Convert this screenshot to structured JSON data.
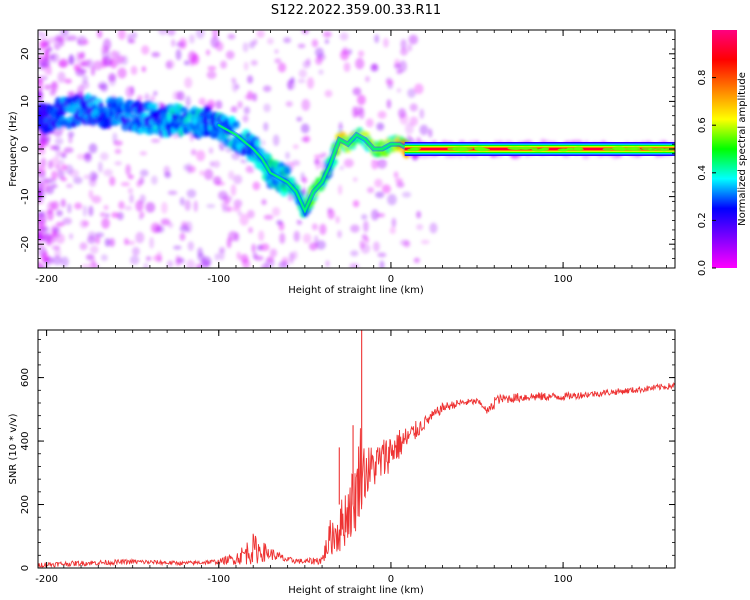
{
  "figure": {
    "title": "S122.2022.359.00.33.R11"
  },
  "colorbar": {
    "label": "Normalized spectral amplitude",
    "ticks": [
      0.0,
      0.2,
      0.4,
      0.6,
      0.8
    ],
    "tick_labels": [
      "0.0",
      "0.2",
      "0.4",
      "0.6",
      "0.8"
    ],
    "range": [
      0,
      1
    ],
    "colormap": [
      "#ff00ff",
      "#8000ff",
      "#0000ff",
      "#00ffff",
      "#00ff00",
      "#ffff00",
      "#ff8000",
      "#ff0000",
      "#ff0080"
    ]
  },
  "chart_data": [
    {
      "type": "heatmap",
      "title": "",
      "xlabel": "Height of straight line (km)",
      "ylabel": "Frequency (Hz)",
      "xlim": [
        -205,
        165
      ],
      "ylim": [
        -25,
        25
      ],
      "xticks": [
        -200,
        -100,
        0,
        100
      ],
      "xtick_labels": [
        "-200",
        "-100",
        "0",
        "100"
      ],
      "yticks": [
        -20,
        -10,
        0,
        10,
        20
      ],
      "ytick_labels": [
        "-20",
        "-10",
        "0",
        "10",
        "20"
      ],
      "ridge": {
        "x": [
          -205,
          -190,
          -170,
          -150,
          -130,
          -115,
          -100,
          -90,
          -80,
          -75,
          -70,
          -60,
          -55,
          -50,
          -45,
          -40,
          -35,
          -30,
          -25,
          -20,
          -15,
          -10,
          -5,
          0,
          5,
          10,
          40,
          80,
          120,
          165
        ],
        "freq": [
          6,
          8,
          8,
          7,
          6,
          6,
          5,
          3,
          0,
          -2,
          -5,
          -7,
          -9,
          -13,
          -9,
          -7,
          -3,
          2,
          1,
          3,
          2,
          0,
          0,
          1,
          1,
          0,
          0,
          0,
          0,
          0
        ],
        "amplitude": [
          0.25,
          0.3,
          0.3,
          0.3,
          0.35,
          0.35,
          0.35,
          0.35,
          0.35,
          0.35,
          0.4,
          0.4,
          0.4,
          0.4,
          0.6,
          0.45,
          0.45,
          0.55,
          0.6,
          0.55,
          0.6,
          0.55,
          0.6,
          0.55,
          0.6,
          0.9,
          0.9,
          0.9,
          0.9,
          0.9
        ]
      }
    },
    {
      "type": "line",
      "title": "",
      "xlabel": "Height of straight line (km)",
      "ylabel": "SNR (10 * v/v)",
      "xlim": [
        -205,
        165
      ],
      "ylim": [
        0,
        750
      ],
      "xticks": [
        -200,
        -100,
        0,
        100
      ],
      "xtick_labels": [
        "-200",
        "-100",
        "0",
        "100"
      ],
      "yticks": [
        0,
        200,
        400,
        600
      ],
      "ytick_labels": [
        "0",
        "200",
        "400",
        "600"
      ],
      "color": "#ee3333",
      "series_envelope": {
        "x": [
          -205,
          -180,
          -150,
          -120,
          -100,
          -90,
          -80,
          -70,
          -60,
          -50,
          -40,
          -35,
          -30,
          -25,
          -20,
          -18,
          -15,
          -10,
          -5,
          0,
          10,
          20,
          30,
          40,
          50,
          55,
          60,
          80,
          100,
          120,
          140,
          165
        ],
        "y": [
          10,
          15,
          20,
          15,
          20,
          30,
          60,
          45,
          25,
          20,
          25,
          100,
          120,
          180,
          230,
          320,
          300,
          320,
          340,
          370,
          410,
          460,
          505,
          520,
          525,
          505,
          530,
          540,
          540,
          550,
          560,
          575
        ],
        "noise": [
          8,
          8,
          8,
          6,
          8,
          20,
          50,
          20,
          10,
          8,
          15,
          60,
          80,
          100,
          120,
          150,
          90,
          70,
          70,
          60,
          40,
          20,
          15,
          12,
          10,
          10,
          15,
          15,
          12,
          10,
          10,
          10
        ],
        "spikes": [
          {
            "x": -17,
            "y": 750
          },
          {
            "x": -22,
            "y": 450
          },
          {
            "x": -30,
            "y": 380
          }
        ]
      }
    }
  ]
}
